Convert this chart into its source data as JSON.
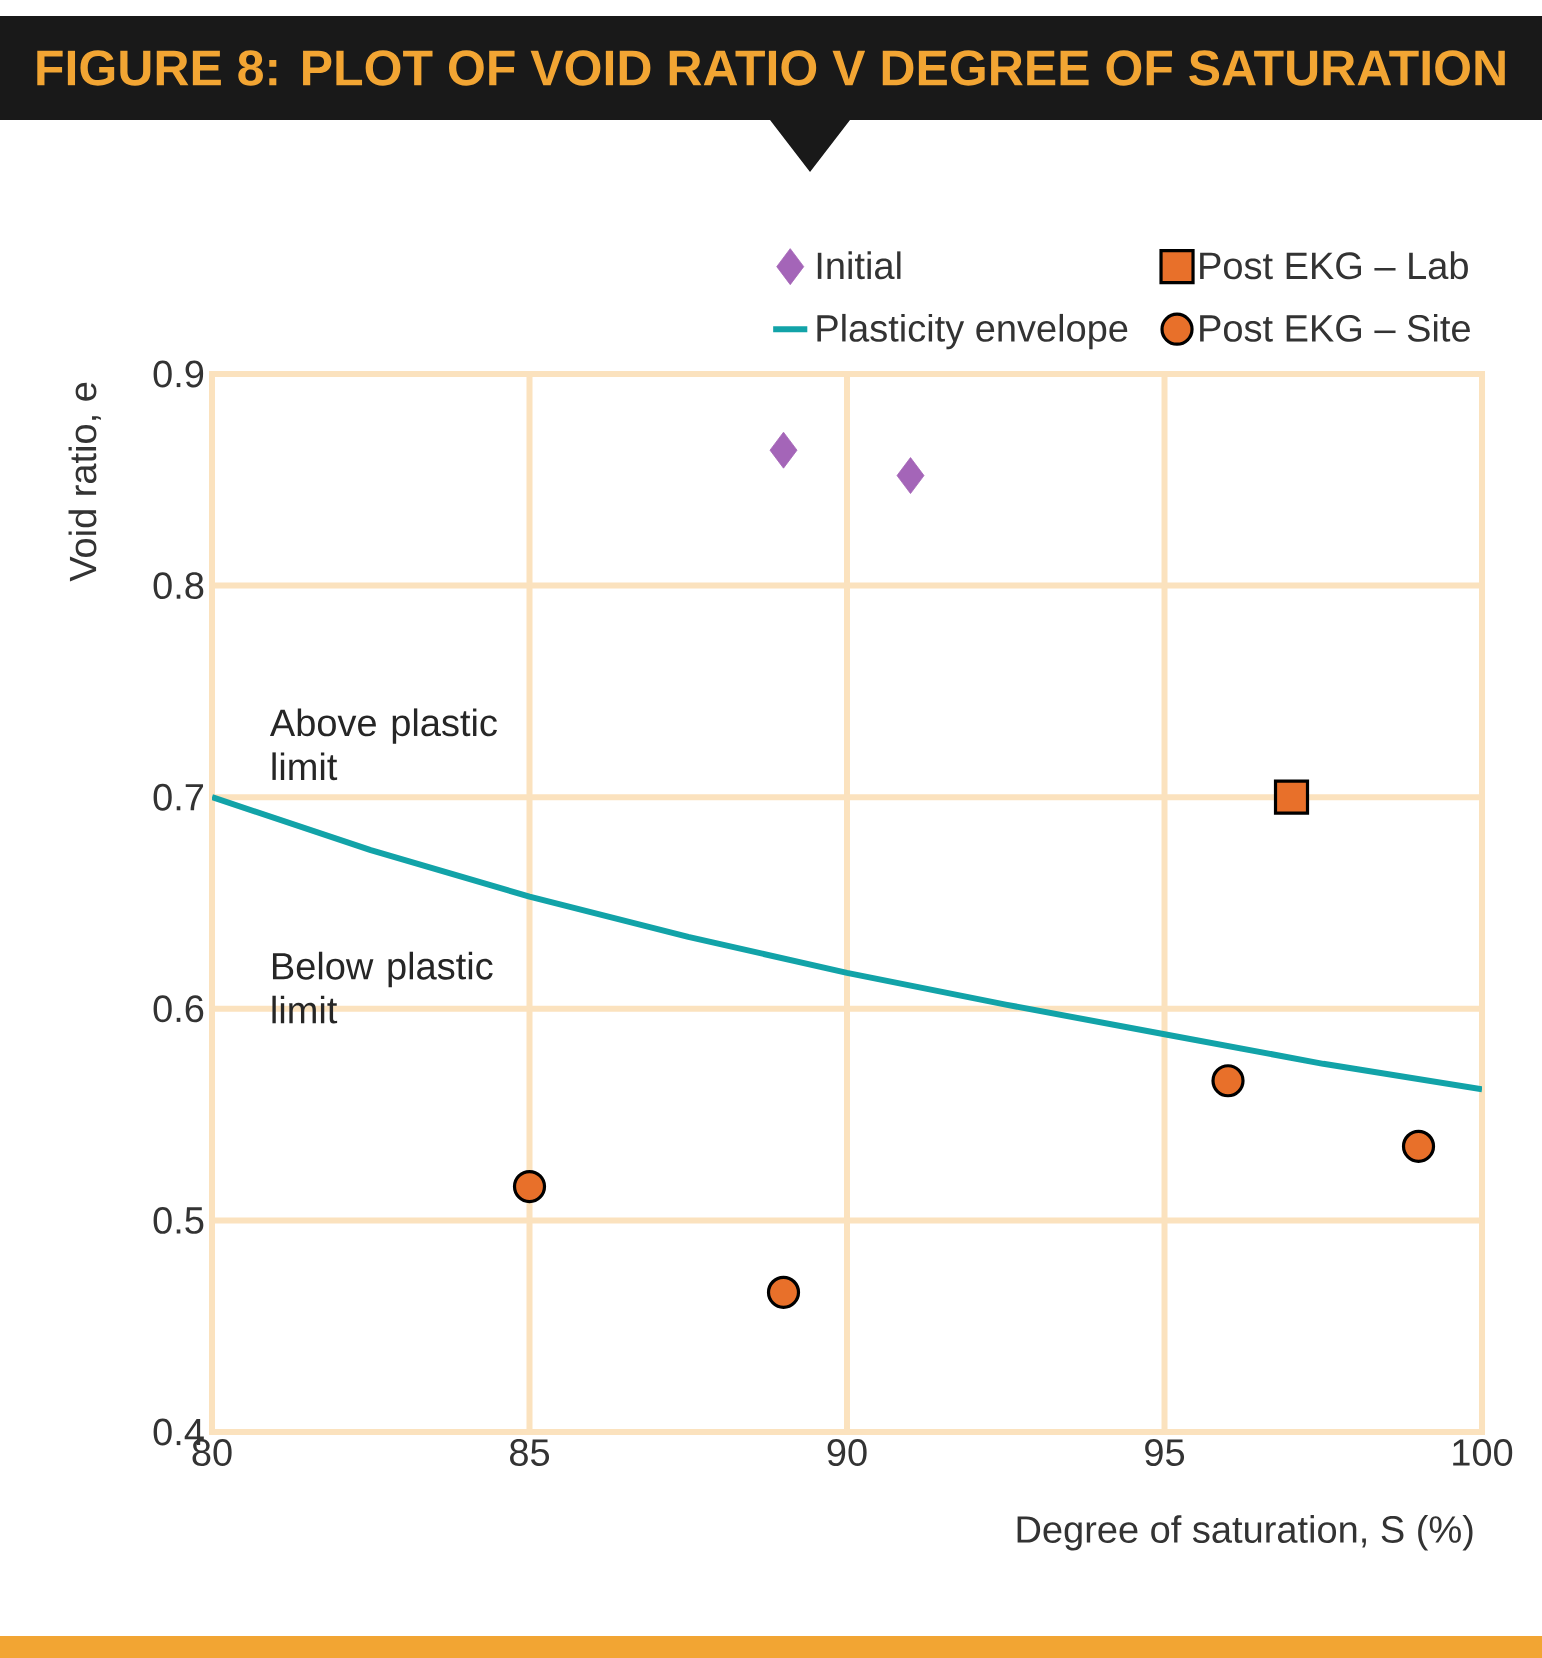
{
  "chart_data": {
    "type": "scatter",
    "title": "FIGURE 8: PLOT OF VOID RATIO V DEGREE OF SATURATION",
    "xlabel": "Degree of saturation, S (%)",
    "ylabel": "Void ratio, e",
    "xlim": [
      80,
      100
    ],
    "xticks": [
      80,
      85,
      90,
      95,
      100
    ],
    "ylim": [
      0.4,
      0.9
    ],
    "yticks": [
      0.4,
      0.5,
      0.6,
      0.7,
      0.8,
      0.9
    ],
    "grid": true,
    "legend": "top",
    "annotations": [
      "Above plastic limit",
      "Below plastic limit"
    ],
    "series": [
      {
        "name": "Initial",
        "type": "scatter",
        "marker": "diamond",
        "color": "#a465b8",
        "x": [
          89,
          91
        ],
        "values": [
          0.864,
          0.852
        ]
      },
      {
        "name": "Post EKG – Lab",
        "type": "scatter",
        "marker": "square",
        "color": "#e8702a",
        "x": [
          97
        ],
        "values": [
          0.7
        ]
      },
      {
        "name": "Plasticity envelope",
        "type": "line",
        "marker": "none",
        "line_style": "solid",
        "color": "#12a3a8",
        "x": [
          80,
          82.5,
          85,
          87.5,
          90,
          92.5,
          95,
          97.5,
          100
        ],
        "values": [
          0.7,
          0.675,
          0.653,
          0.634,
          0.617,
          0.602,
          0.588,
          0.574,
          0.562
        ]
      },
      {
        "name": "Post EKG – Site",
        "type": "scatter",
        "marker": "circle",
        "color": "#e8702a",
        "x": [
          85,
          89,
          96,
          99
        ],
        "values": [
          0.516,
          0.466,
          0.566,
          0.535
        ]
      }
    ]
  }
}
